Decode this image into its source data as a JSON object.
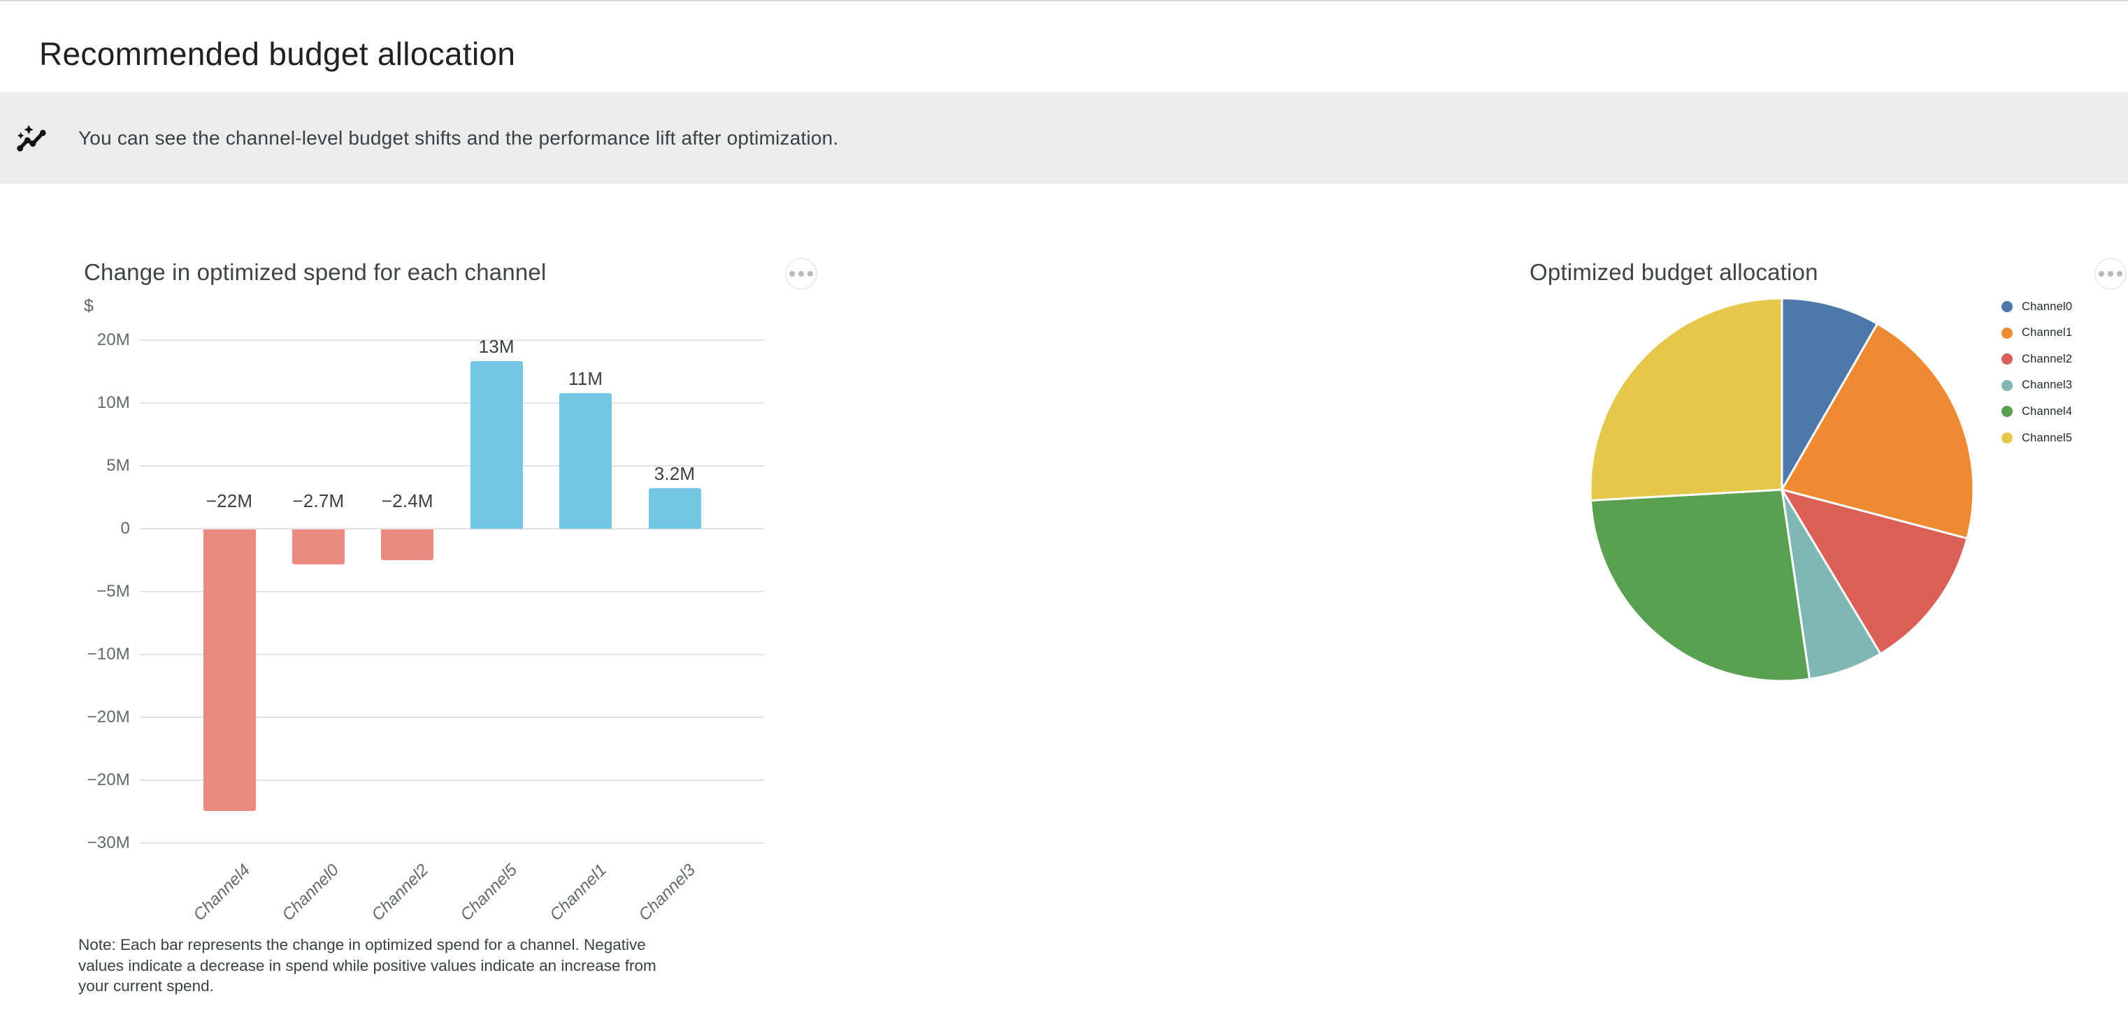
{
  "page": {
    "title": "Recommended budget allocation"
  },
  "banner": {
    "icon": "sparkline-insights-icon",
    "text": "You can see the channel-level budget shifts and the performance lift after optimization."
  },
  "icons": {
    "chart_menu": "three-dots-more-options-icon"
  },
  "chart_data": [
    {
      "id": "spend-delta-bar-chart",
      "type": "bar",
      "title": "Change in optimized spend for each channel",
      "ylabel": "$",
      "y_tick_labels": [
        "20M",
        "10M",
        "5M",
        "0",
        "−5M",
        "−10M",
        "−20M",
        "−20M",
        "−30M"
      ],
      "categories": [
        "Channel4",
        "Channel0",
        "Channel2",
        "Channel5",
        "Channel1",
        "Channel3"
      ],
      "values_millions": [
        -22,
        -2.7,
        -2.4,
        13,
        11,
        3.2
      ],
      "value_labels": [
        "−22M",
        "−2.7M",
        "−2.4M",
        "13M",
        "11M",
        "3.2M"
      ],
      "negative_color": "#e98b80",
      "positive_color": "#73c7e3",
      "gridline_color": "#e3e3e3",
      "grid": "horizontal",
      "note_lines": [
        "Note: Each bar represents the change in optimized spend for a channel. Negative",
        "values indicate a decrease in spend while positive values indicate an increase from",
        "your current spend."
      ]
    },
    {
      "id": "optimized-allocation-pie-chart",
      "type": "pie",
      "title": "Optimized budget allocation",
      "legend_position": "right",
      "slices": [
        {
          "label": "Channel0",
          "value_pct": 8.3,
          "color": "#4d78a9"
        },
        {
          "label": "Channel1",
          "value_pct": 20.8,
          "color": "#ee8a33"
        },
        {
          "label": "Channel2",
          "value_pct": 12.3,
          "color": "#d95f57"
        },
        {
          "label": "Channel3",
          "value_pct": 6.3,
          "color": "#81b7b2"
        },
        {
          "label": "Channel4",
          "value_pct": 26.4,
          "color": "#59a052"
        },
        {
          "label": "Channel5",
          "value_pct": 25.9,
          "color": "#e5c84b"
        }
      ]
    }
  ]
}
